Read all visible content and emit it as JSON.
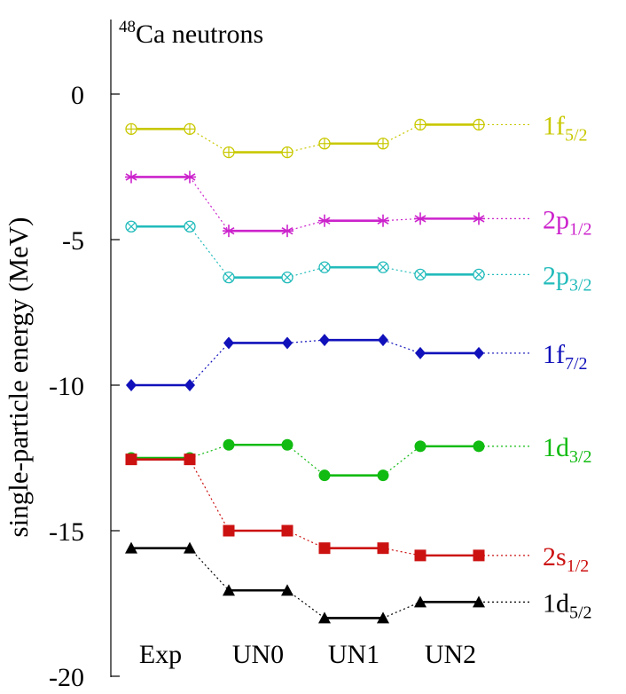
{
  "chart_data": {
    "type": "line",
    "title": "48Ca neutrons",
    "title_sup": "48",
    "title_main": "Ca neutrons",
    "ylabel": "single-particle energy (MeV)",
    "xlabel": "",
    "ylim": [
      -20,
      2.5
    ],
    "yticks": [
      0,
      -5,
      -10,
      -15,
      -20
    ],
    "categories": [
      "Exp",
      "UN0",
      "UN1",
      "UN2"
    ],
    "grid": false,
    "series": [
      {
        "key": "1f5/2",
        "label_main": "1f",
        "label_sub": "5/2",
        "color": "#c8c800",
        "marker": "circle-plus",
        "values": [
          -1.2,
          -2.0,
          -1.7,
          -1.05
        ]
      },
      {
        "key": "2p1/2",
        "label_main": "2p",
        "label_sub": "1/2",
        "color": "#cc22cc",
        "marker": "star",
        "values": [
          -2.85,
          -4.7,
          -4.35,
          -4.28
        ]
      },
      {
        "key": "2p3/2",
        "label_main": "2p",
        "label_sub": "3/2",
        "color": "#22bbbb",
        "marker": "circle-x",
        "values": [
          -4.55,
          -6.3,
          -5.95,
          -6.2
        ]
      },
      {
        "key": "1f7/2",
        "label_main": "1f",
        "label_sub": "7/2",
        "color": "#1111bb",
        "marker": "diamond",
        "values": [
          -10.0,
          -8.55,
          -8.45,
          -8.9
        ]
      },
      {
        "key": "1d3/2",
        "label_main": "1d",
        "label_sub": "3/2",
        "color": "#11bb11",
        "marker": "filled-circle",
        "values": [
          -12.5,
          -12.05,
          -13.1,
          -12.1
        ]
      },
      {
        "key": "2s1/2",
        "label_main": "2s",
        "label_sub": "1/2",
        "color": "#cc1111",
        "marker": "filled-square",
        "values": [
          -12.55,
          -15.0,
          -15.6,
          -15.85
        ]
      },
      {
        "key": "1d5/2",
        "label_main": "1d",
        "label_sub": "5/2",
        "color": "#000000",
        "marker": "filled-triangle",
        "values": [
          -15.6,
          -17.05,
          -18.0,
          -17.45
        ]
      }
    ]
  }
}
